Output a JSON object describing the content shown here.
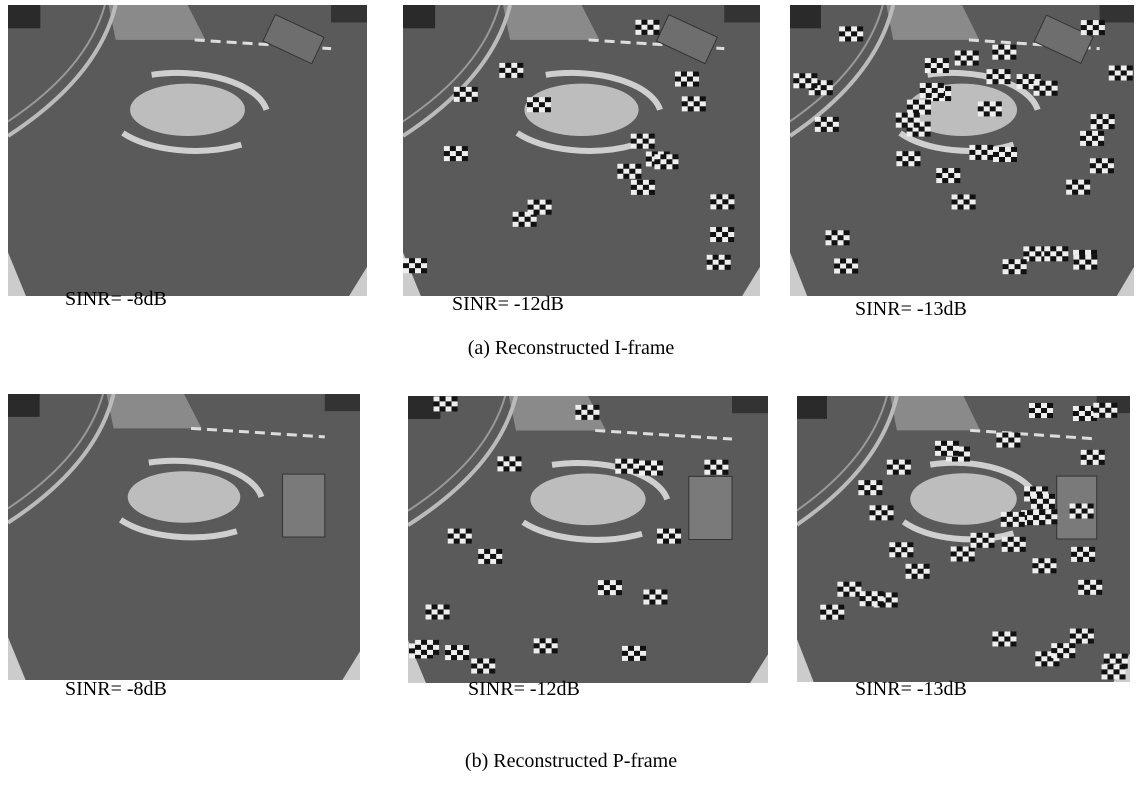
{
  "panels": [
    {
      "caption": "(a) Reconstructed I-frame",
      "images": [
        {
          "label": "SINR= -8dB"
        },
        {
          "label": "SINR= -12dB"
        },
        {
          "label": "SINR= -13dB"
        }
      ]
    },
    {
      "caption": "(b) Reconstructed P-frame",
      "images": [
        {
          "label": "SINR= -8dB"
        },
        {
          "label": "SINR= -12dB"
        },
        {
          "label": "SINR= -13dB"
        }
      ]
    }
  ]
}
